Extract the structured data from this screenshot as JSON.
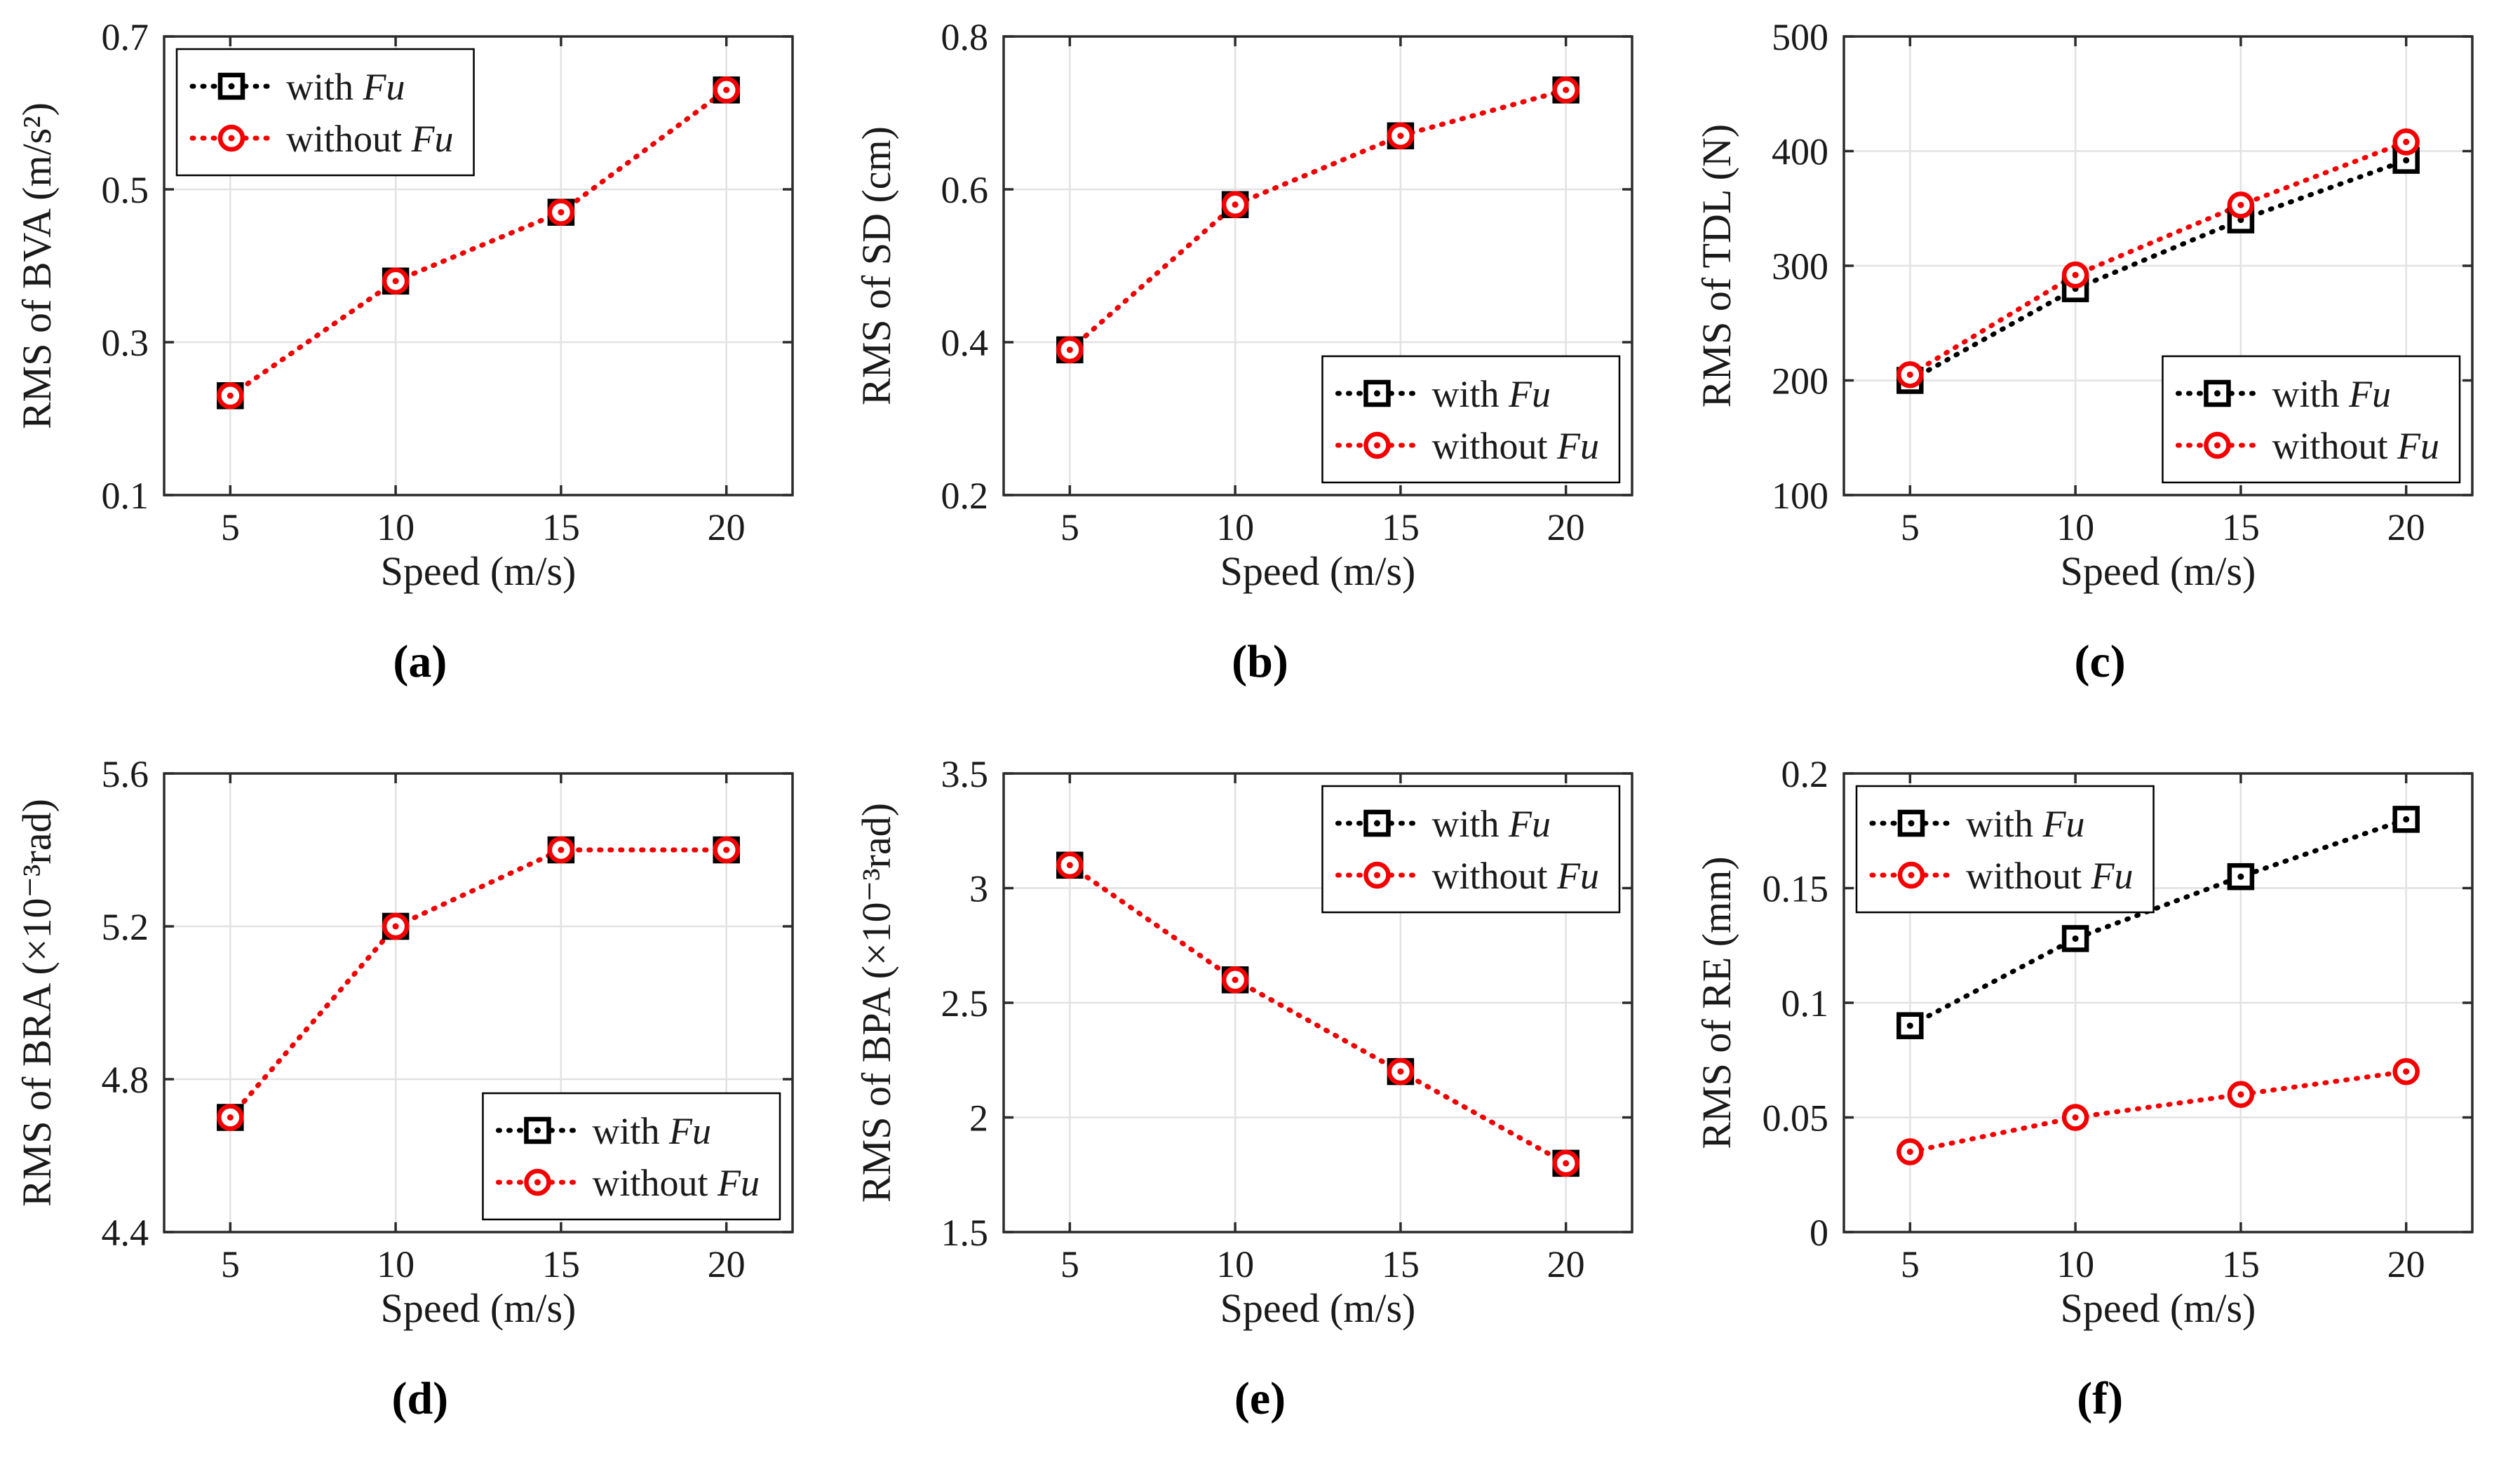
{
  "page": {
    "background": "#ffffff"
  },
  "theme": {
    "axis_color": "#2b2b2b",
    "grid_color": "#e2e2e2",
    "text_color": "#1a1a1a",
    "legend_border_color": "#000000",
    "series_with_color": "#000000",
    "series_without_color": "#f50000"
  },
  "chart_data": [
    {
      "type": "line",
      "caption": "(a)",
      "xlabel": "Speed (m/s)",
      "ylabel": "RMS of BVA (m/s²)",
      "x": [
        5,
        10,
        15,
        20
      ],
      "xlim": [
        3,
        22
      ],
      "ylim": [
        0.1,
        0.7
      ],
      "xticks": [
        5,
        10,
        15,
        20
      ],
      "xtick_labels": [
        "5",
        "10",
        "15",
        "20"
      ],
      "yticks": [
        0.1,
        0.3,
        0.5,
        0.7
      ],
      "ytick_labels": [
        "0.1",
        "0.3",
        "0.5",
        "0.7"
      ],
      "grid": true,
      "legend_pos": "top-left",
      "series": [
        {
          "name": "with Fu",
          "label_prefix": "with ",
          "label_italic": "Fu",
          "marker": "square",
          "color": "#000000",
          "values": [
            0.23,
            0.38,
            0.47,
            0.63
          ]
        },
        {
          "name": "without Fu",
          "label_prefix": "without ",
          "label_italic": "Fu",
          "marker": "circle",
          "color": "#f50000",
          "values": [
            0.23,
            0.38,
            0.47,
            0.63
          ]
        }
      ]
    },
    {
      "type": "line",
      "caption": "(b)",
      "xlabel": "Speed (m/s)",
      "ylabel": "RMS of SD (cm)",
      "x": [
        5,
        10,
        15,
        20
      ],
      "xlim": [
        3,
        22
      ],
      "ylim": [
        0.2,
        0.8
      ],
      "xticks": [
        5,
        10,
        15,
        20
      ],
      "xtick_labels": [
        "5",
        "10",
        "15",
        "20"
      ],
      "yticks": [
        0.2,
        0.4,
        0.6,
        0.8
      ],
      "ytick_labels": [
        "0.2",
        "0.4",
        "0.6",
        "0.8"
      ],
      "grid": true,
      "legend_pos": "bottom-right",
      "series": [
        {
          "name": "with Fu",
          "label_prefix": "with ",
          "label_italic": "Fu",
          "marker": "square",
          "color": "#000000",
          "values": [
            0.39,
            0.58,
            0.67,
            0.73
          ]
        },
        {
          "name": "without Fu",
          "label_prefix": "without ",
          "label_italic": "Fu",
          "marker": "circle",
          "color": "#f50000",
          "values": [
            0.39,
            0.58,
            0.67,
            0.73
          ]
        }
      ]
    },
    {
      "type": "line",
      "caption": "(c)",
      "xlabel": "Speed (m/s)",
      "ylabel": "RMS of TDL (N)",
      "x": [
        5,
        10,
        15,
        20
      ],
      "xlim": [
        3,
        22
      ],
      "ylim": [
        100,
        500
      ],
      "xticks": [
        5,
        10,
        15,
        20
      ],
      "xtick_labels": [
        "5",
        "10",
        "15",
        "20"
      ],
      "yticks": [
        100,
        200,
        300,
        400,
        500
      ],
      "ytick_labels": [
        "100",
        "200",
        "300",
        "400",
        "500"
      ],
      "grid": true,
      "legend_pos": "bottom-right",
      "series": [
        {
          "name": "with Fu",
          "label_prefix": "with ",
          "label_italic": "Fu",
          "marker": "square",
          "color": "#000000",
          "values": [
            200,
            280,
            340,
            392
          ]
        },
        {
          "name": "without Fu",
          "label_prefix": "without ",
          "label_italic": "Fu",
          "marker": "circle",
          "color": "#f50000",
          "values": [
            205,
            292,
            353,
            408
          ]
        }
      ]
    },
    {
      "type": "line",
      "caption": "(d)",
      "xlabel": "Speed (m/s)",
      "ylabel": "RMS of BRA (×10⁻³rad)",
      "x": [
        5,
        10,
        15,
        20
      ],
      "xlim": [
        3,
        22
      ],
      "ylim": [
        4.4,
        5.6
      ],
      "xticks": [
        5,
        10,
        15,
        20
      ],
      "xtick_labels": [
        "5",
        "10",
        "15",
        "20"
      ],
      "yticks": [
        4.4,
        4.8,
        5.2,
        5.6
      ],
      "ytick_labels": [
        "4.4",
        "4.8",
        "5.2",
        "5.6"
      ],
      "grid": true,
      "legend_pos": "bottom-right",
      "series": [
        {
          "name": "with Fu",
          "label_prefix": "with ",
          "label_italic": "Fu",
          "marker": "square",
          "color": "#000000",
          "values": [
            4.7,
            5.2,
            5.4,
            5.4
          ]
        },
        {
          "name": "without Fu",
          "label_prefix": "without ",
          "label_italic": "Fu",
          "marker": "circle",
          "color": "#f50000",
          "values": [
            4.7,
            5.2,
            5.4,
            5.4
          ]
        }
      ]
    },
    {
      "type": "line",
      "caption": "(e)",
      "xlabel": "Speed (m/s)",
      "ylabel": "RMS of BPA (×10⁻³rad)",
      "x": [
        5,
        10,
        15,
        20
      ],
      "xlim": [
        3,
        22
      ],
      "ylim": [
        1.5,
        3.5
      ],
      "xticks": [
        5,
        10,
        15,
        20
      ],
      "xtick_labels": [
        "5",
        "10",
        "15",
        "20"
      ],
      "yticks": [
        1.5,
        2,
        2.5,
        3,
        3.5
      ],
      "ytick_labels": [
        "1.5",
        "2",
        "2.5",
        "3",
        "3.5"
      ],
      "grid": true,
      "legend_pos": "top-right",
      "series": [
        {
          "name": "with Fu",
          "label_prefix": "with ",
          "label_italic": "Fu",
          "marker": "square",
          "color": "#000000",
          "values": [
            3.1,
            2.6,
            2.2,
            1.8
          ]
        },
        {
          "name": "without Fu",
          "label_prefix": "without ",
          "label_italic": "Fu",
          "marker": "circle",
          "color": "#f50000",
          "values": [
            3.1,
            2.6,
            2.2,
            1.8
          ]
        }
      ]
    },
    {
      "type": "line",
      "caption": "(f)",
      "xlabel": "Speed (m/s)",
      "ylabel": "RMS of RE (mm)",
      "x": [
        5,
        10,
        15,
        20
      ],
      "xlim": [
        3,
        22
      ],
      "ylim": [
        0,
        0.2
      ],
      "xticks": [
        5,
        10,
        15,
        20
      ],
      "xtick_labels": [
        "5",
        "10",
        "15",
        "20"
      ],
      "yticks": [
        0,
        0.05,
        0.1,
        0.15,
        0.2
      ],
      "ytick_labels": [
        "0",
        "0.05",
        "0.1",
        "0.15",
        "0.2"
      ],
      "grid": true,
      "legend_pos": "top-left",
      "series": [
        {
          "name": "with Fu",
          "label_prefix": "with ",
          "label_italic": "Fu",
          "marker": "square",
          "color": "#000000",
          "values": [
            0.09,
            0.128,
            0.155,
            0.18
          ]
        },
        {
          "name": "without Fu",
          "label_prefix": "without ",
          "label_italic": "Fu",
          "marker": "circle",
          "color": "#f50000",
          "values": [
            0.035,
            0.05,
            0.06,
            0.07
          ]
        }
      ]
    }
  ]
}
